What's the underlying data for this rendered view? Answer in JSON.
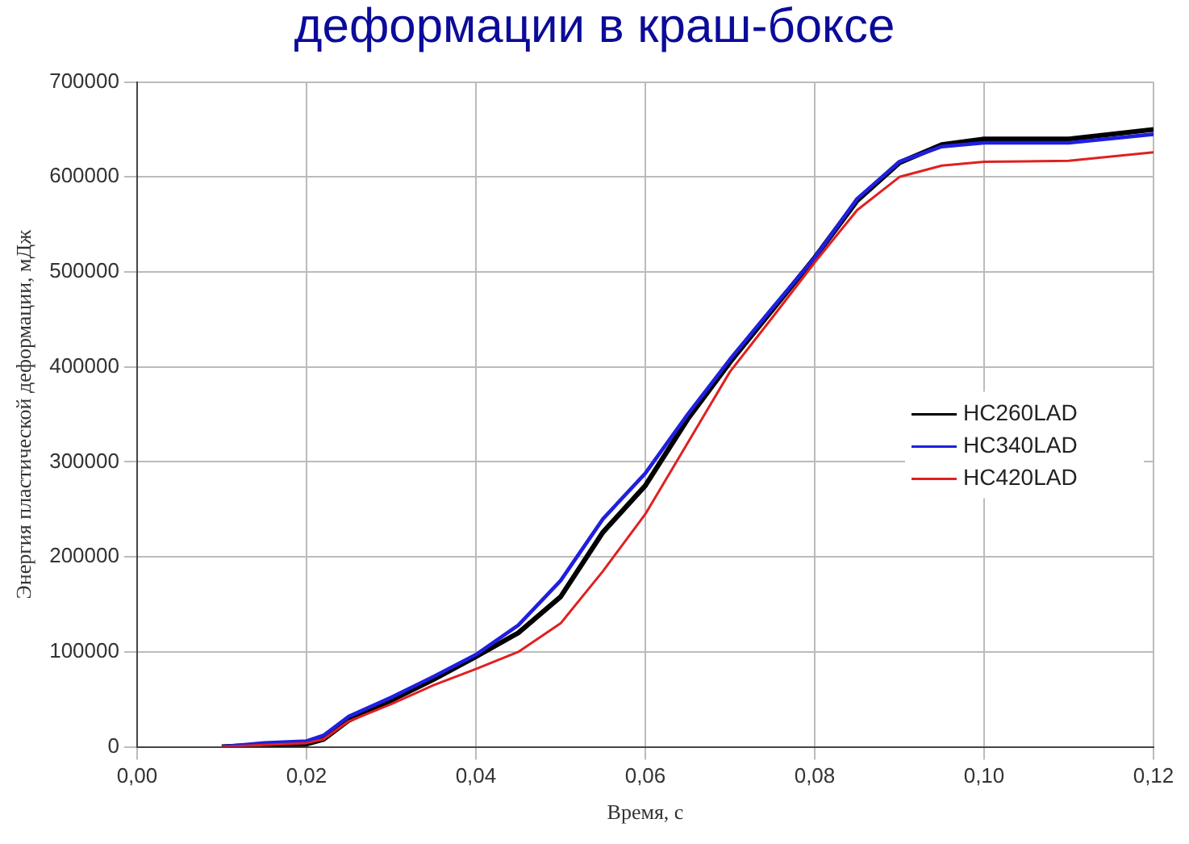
{
  "chart_data": {
    "type": "line",
    "title": "деформации в краш-боксе",
    "xlabel": "Время, с",
    "ylabel": "Энергия пластической деформации, мДж",
    "xlim": [
      0,
      0.12
    ],
    "ylim": [
      0,
      700000
    ],
    "xticks": [
      {
        "value": 0,
        "label": "0,00"
      },
      {
        "value": 0.02,
        "label": "0,02"
      },
      {
        "value": 0.04,
        "label": "0,04"
      },
      {
        "value": 0.06,
        "label": "0,06"
      },
      {
        "value": 0.08,
        "label": "0,08"
      },
      {
        "value": 0.1,
        "label": "0,10"
      },
      {
        "value": 0.12,
        "label": "0,12"
      }
    ],
    "yticks": [
      0,
      100000,
      200000,
      300000,
      400000,
      500000,
      600000,
      700000
    ],
    "grid": true,
    "legend": "right",
    "marker": "none",
    "line_style": "solid",
    "x": [
      0.01,
      0.015,
      0.02,
      0.022,
      0.025,
      0.03,
      0.035,
      0.04,
      0.045,
      0.05,
      0.055,
      0.06,
      0.065,
      0.07,
      0.075,
      0.08,
      0.085,
      0.09,
      0.095,
      0.1,
      0.11,
      0.12
    ],
    "series": [
      {
        "name": "HC260LAD",
        "color": "#000000",
        "values": [
          0,
          2000,
          3000,
          8000,
          28000,
          49000,
          71000,
          95000,
          120000,
          158000,
          226000,
          275000,
          345000,
          405000,
          460000,
          515000,
          575000,
          615000,
          634000,
          640000,
          640000,
          650000
        ]
      },
      {
        "name": "HC340LAD",
        "color": "#1f1fe0",
        "values": [
          0,
          4000,
          6000,
          12000,
          32000,
          52000,
          74000,
          97000,
          128000,
          175000,
          240000,
          288000,
          350000,
          408000,
          462000,
          515000,
          577000,
          616000,
          632000,
          636000,
          636000,
          645000
        ]
      },
      {
        "name": "HC420LAD",
        "color": "#e02020",
        "values": [
          0,
          2000,
          4000,
          8000,
          27000,
          45000,
          65000,
          82000,
          100000,
          130000,
          185000,
          245000,
          320000,
          395000,
          452000,
          510000,
          565000,
          600000,
          612000,
          616000,
          617000,
          626000
        ]
      }
    ]
  }
}
